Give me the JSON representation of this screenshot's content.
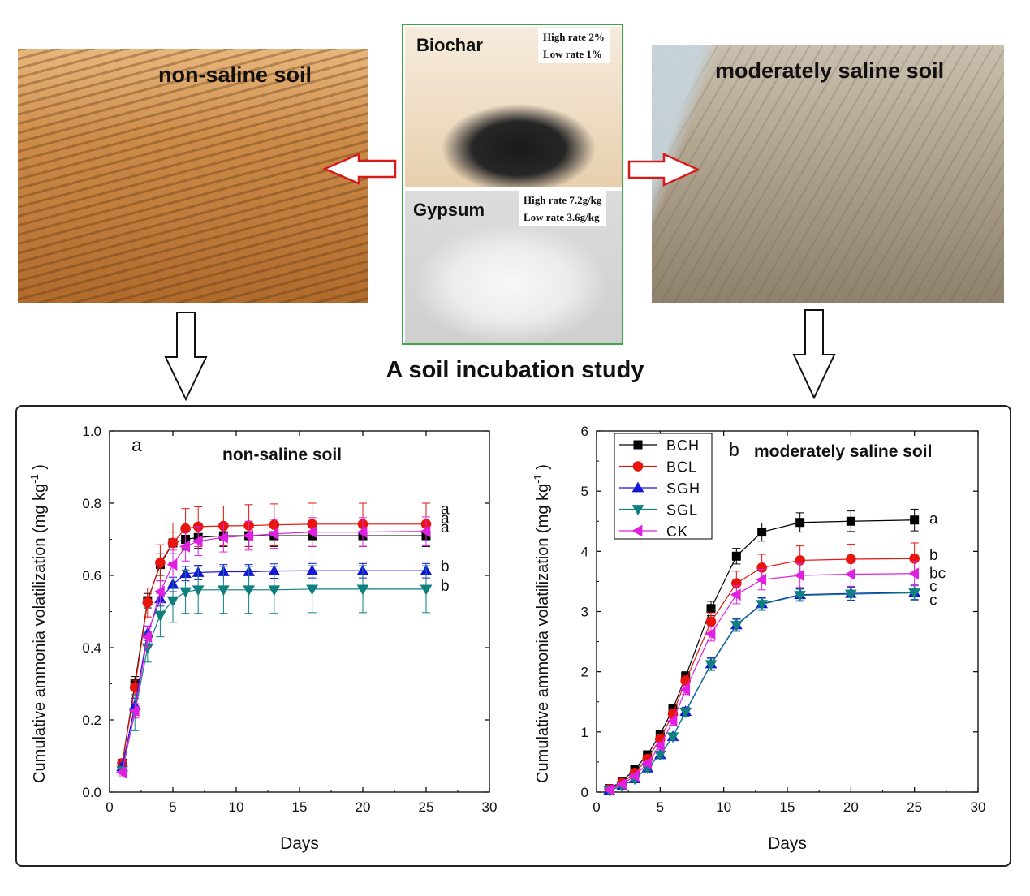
{
  "top": {
    "non_saline_label": "non-saline soil",
    "saline_label": "moderately saline soil",
    "biochar": {
      "name": "Biochar",
      "high": "High rate 2%",
      "low": "Low  rate 1%"
    },
    "gypsum": {
      "name": "Gypsum",
      "high": "High rate 7.2g/kg",
      "low": "Low  rate 3.6g/kg"
    },
    "study_title": "A soil incubation study"
  },
  "colors": {
    "BCH": "#000000",
    "BCL": "#e8140e",
    "SGH": "#1515d8",
    "SGL": "#0f7f80",
    "CK": "#e020e0",
    "frame": "#3aa84a"
  },
  "chart_data": [
    {
      "type": "line",
      "panel_letter": "a",
      "title": "non-saline soil",
      "xlabel": "Days",
      "ylabel": "Cumulative ammonia volatilization (mg kg",
      "ylabel_sup": "-1",
      "ylabel_tail": " )",
      "xlim": [
        0,
        30
      ],
      "ylim": [
        0,
        1.0
      ],
      "xticks": [
        "0",
        "5",
        "10",
        "15",
        "20",
        "25",
        "30"
      ],
      "yticks": [
        "0.0",
        "0.2",
        "0.4",
        "0.6",
        "0.8",
        "1.0"
      ],
      "x": [
        1,
        2,
        3,
        4,
        5,
        6,
        7,
        9,
        11,
        13,
        16,
        20,
        25
      ],
      "series": [
        {
          "name": "BCH",
          "marker": "square",
          "values": [
            0.08,
            0.3,
            0.53,
            0.63,
            0.69,
            0.7,
            0.705,
            0.71,
            0.71,
            0.71,
            0.71,
            0.71,
            0.71
          ],
          "errors": [
            0.01,
            0.02,
            0.02,
            0.03,
            0.03,
            0.03,
            0.03,
            0.03,
            0.03,
            0.03,
            0.03,
            0.03,
            0.03
          ]
        },
        {
          "name": "BCL",
          "marker": "circle",
          "values": [
            0.08,
            0.29,
            0.525,
            0.635,
            0.69,
            0.73,
            0.735,
            0.737,
            0.738,
            0.74,
            0.742,
            0.742,
            0.742
          ],
          "errors": [
            0.01,
            0.02,
            0.04,
            0.05,
            0.055,
            0.055,
            0.055,
            0.055,
            0.058,
            0.058,
            0.058,
            0.058,
            0.058
          ]
        },
        {
          "name": "SGH",
          "marker": "triangle-up",
          "values": [
            0.07,
            0.24,
            0.44,
            0.535,
            0.575,
            0.605,
            0.608,
            0.61,
            0.61,
            0.612,
            0.613,
            0.613,
            0.613
          ],
          "errors": [
            0.01,
            0.02,
            0.02,
            0.02,
            0.02,
            0.02,
            0.02,
            0.02,
            0.02,
            0.02,
            0.02,
            0.02,
            0.02
          ]
        },
        {
          "name": "SGL",
          "marker": "triangle-down",
          "values": [
            0.06,
            0.22,
            0.4,
            0.49,
            0.53,
            0.555,
            0.56,
            0.56,
            0.56,
            0.56,
            0.562,
            0.562,
            0.562
          ],
          "errors": [
            0.01,
            0.05,
            0.04,
            0.06,
            0.06,
            0.06,
            0.065,
            0.065,
            0.065,
            0.065,
            0.065,
            0.065,
            0.065
          ]
        },
        {
          "name": "CK",
          "marker": "triangle-left",
          "values": [
            0.055,
            0.225,
            0.43,
            0.555,
            0.63,
            0.68,
            0.695,
            0.705,
            0.71,
            0.715,
            0.72,
            0.72,
            0.722
          ],
          "errors": [
            0.01,
            0.02,
            0.03,
            0.03,
            0.04,
            0.04,
            0.04,
            0.04,
            0.04,
            0.04,
            0.04,
            0.04,
            0.04
          ]
        }
      ],
      "significance": [
        {
          "label": "a",
          "y": 0.785
        },
        {
          "label": "a",
          "y": 0.76
        },
        {
          "label": "a",
          "y": 0.735
        },
        {
          "label": "b",
          "y": 0.627
        },
        {
          "label": "b",
          "y": 0.573
        }
      ]
    },
    {
      "type": "line",
      "panel_letter": "b",
      "title": "moderately saline soil",
      "xlabel": "Days",
      "ylabel": "Cumulative ammonia volatilization (mg kg",
      "ylabel_sup": "-1",
      "ylabel_tail": " )",
      "xlim": [
        0,
        30
      ],
      "ylim": [
        0,
        6
      ],
      "xticks": [
        "0",
        "5",
        "10",
        "15",
        "20",
        "25",
        "30"
      ],
      "yticks": [
        "0",
        "1",
        "2",
        "3",
        "4",
        "5",
        "6"
      ],
      "legend": [
        "BCH",
        "BCL",
        "SGH",
        "SGL",
        "CK"
      ],
      "legend_position": "top-left",
      "x": [
        1,
        2,
        3,
        4,
        5,
        6,
        7,
        9,
        11,
        13,
        16,
        20,
        25
      ],
      "series": [
        {
          "name": "BCH",
          "marker": "square",
          "values": [
            0.06,
            0.18,
            0.38,
            0.62,
            0.96,
            1.38,
            1.92,
            3.05,
            3.92,
            4.32,
            4.48,
            4.5,
            4.52
          ],
          "errors": [
            0.02,
            0.03,
            0.04,
            0.05,
            0.06,
            0.07,
            0.08,
            0.12,
            0.13,
            0.15,
            0.16,
            0.17,
            0.18
          ]
        },
        {
          "name": "BCL",
          "marker": "circle",
          "values": [
            0.05,
            0.15,
            0.32,
            0.55,
            0.88,
            1.3,
            1.85,
            2.83,
            3.47,
            3.73,
            3.85,
            3.87,
            3.88
          ],
          "errors": [
            0.02,
            0.03,
            0.04,
            0.05,
            0.06,
            0.07,
            0.08,
            0.15,
            0.2,
            0.22,
            0.24,
            0.25,
            0.26
          ]
        },
        {
          "name": "SGH",
          "marker": "triangle-up",
          "values": [
            0.03,
            0.1,
            0.22,
            0.4,
            0.62,
            0.92,
            1.34,
            2.13,
            2.78,
            3.13,
            3.28,
            3.3,
            3.32
          ],
          "errors": [
            0.02,
            0.02,
            0.03,
            0.04,
            0.05,
            0.06,
            0.07,
            0.1,
            0.1,
            0.1,
            0.1,
            0.11,
            0.12
          ]
        },
        {
          "name": "SGL",
          "marker": "triangle-down",
          "values": [
            0.03,
            0.1,
            0.22,
            0.4,
            0.62,
            0.92,
            1.33,
            2.12,
            2.77,
            3.12,
            3.27,
            3.29,
            3.31
          ],
          "errors": [
            0.02,
            0.02,
            0.03,
            0.04,
            0.05,
            0.06,
            0.07,
            0.1,
            0.1,
            0.1,
            0.1,
            0.11,
            0.12
          ]
        },
        {
          "name": "CK",
          "marker": "triangle-left",
          "values": [
            0.04,
            0.13,
            0.27,
            0.48,
            0.77,
            1.18,
            1.7,
            2.63,
            3.28,
            3.53,
            3.6,
            3.62,
            3.63
          ],
          "errors": [
            0.02,
            0.03,
            0.04,
            0.05,
            0.06,
            0.07,
            0.08,
            0.12,
            0.15,
            0.17,
            0.2,
            0.2,
            0.2
          ]
        }
      ],
      "significance": [
        {
          "label": "a",
          "y": 4.55
        },
        {
          "label": "b",
          "y": 3.95
        },
        {
          "label": "bc",
          "y": 3.65
        },
        {
          "label": "c",
          "y": 3.43
        },
        {
          "label": "c",
          "y": 3.2
        }
      ]
    }
  ]
}
